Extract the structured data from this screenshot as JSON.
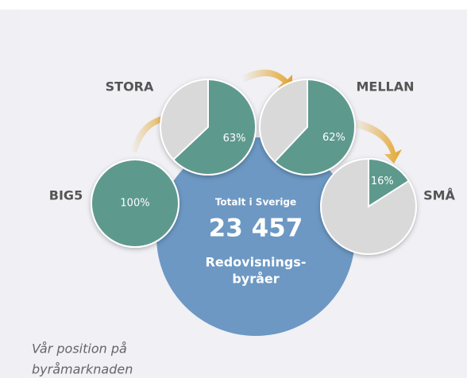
{
  "chart_data": [
    {
      "type": "pie",
      "title": "BIG5",
      "values": [
        100
      ],
      "value_labels": [
        "100%"
      ],
      "color": "#5e998e"
    },
    {
      "type": "pie",
      "title": "STORA",
      "values": [
        63
      ],
      "value_labels": [
        "63%"
      ],
      "color": "#5e998e"
    },
    {
      "type": "pie",
      "title": "MELLAN",
      "values": [
        62
      ],
      "value_labels": [
        "62%"
      ],
      "color": "#5e998e"
    },
    {
      "type": "pie",
      "title": "SMÅ",
      "values": [
        16
      ],
      "value_labels": [
        "16%"
      ],
      "color": "#5e998e"
    }
  ],
  "center": {
    "subtitle": "Totalt i Sverige",
    "total": "23 457",
    "label": [
      "Redovisnings-",
      "byråer"
    ]
  },
  "caption": [
    "Vår position på",
    "byråmarknaden"
  ]
}
